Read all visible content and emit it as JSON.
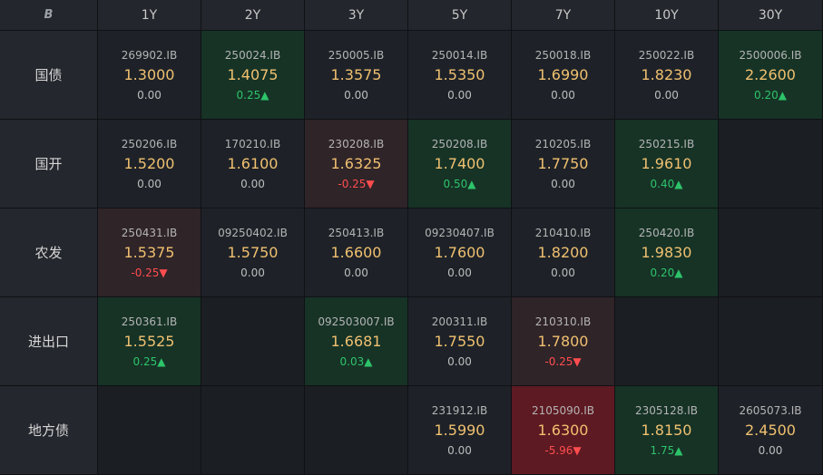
{
  "header": {
    "corner_icon": "B",
    "tenors": [
      "1Y",
      "2Y",
      "3Y",
      "5Y",
      "7Y",
      "10Y",
      "30Y"
    ]
  },
  "colors": {
    "background": "#191c21",
    "yield_text": "#f0c070",
    "up": "#2ec36a",
    "down": "#ff4d4f",
    "up_cell": "#163326",
    "down_cell": "#2f2428",
    "strong_down_cell": "#5e1a22"
  },
  "rows": [
    {
      "label": "国债",
      "cells": [
        {
          "code": "269902.IB",
          "yield": "1.3000",
          "change": "0.00",
          "dir": "flat"
        },
        {
          "code": "250024.IB",
          "yield": "1.4075",
          "change": "0.25▲",
          "dir": "up"
        },
        {
          "code": "250005.IB",
          "yield": "1.3575",
          "change": "0.00",
          "dir": "flat"
        },
        {
          "code": "250014.IB",
          "yield": "1.5350",
          "change": "0.00",
          "dir": "flat"
        },
        {
          "code": "250018.IB",
          "yield": "1.6990",
          "change": "0.00",
          "dir": "flat"
        },
        {
          "code": "250022.IB",
          "yield": "1.8230",
          "change": "0.00",
          "dir": "flat"
        },
        {
          "code": "2500006.IB",
          "yield": "2.2600",
          "change": "0.20▲",
          "dir": "up"
        }
      ]
    },
    {
      "label": "国开",
      "cells": [
        {
          "code": "250206.IB",
          "yield": "1.5200",
          "change": "0.00",
          "dir": "flat"
        },
        {
          "code": "170210.IB",
          "yield": "1.6100",
          "change": "0.00",
          "dir": "flat"
        },
        {
          "code": "230208.IB",
          "yield": "1.6325",
          "change": "-0.25▼",
          "dir": "down"
        },
        {
          "code": "250208.IB",
          "yield": "1.7400",
          "change": "0.50▲",
          "dir": "up"
        },
        {
          "code": "210205.IB",
          "yield": "1.7750",
          "change": "0.00",
          "dir": "flat"
        },
        {
          "code": "250215.IB",
          "yield": "1.9610",
          "change": "0.40▲",
          "dir": "up"
        },
        null
      ]
    },
    {
      "label": "农发",
      "cells": [
        {
          "code": "250431.IB",
          "yield": "1.5375",
          "change": "-0.25▼",
          "dir": "down"
        },
        {
          "code": "09250402.IB",
          "yield": "1.5750",
          "change": "0.00",
          "dir": "flat"
        },
        {
          "code": "250413.IB",
          "yield": "1.6600",
          "change": "0.00",
          "dir": "flat"
        },
        {
          "code": "09230407.IB",
          "yield": "1.7600",
          "change": "0.00",
          "dir": "flat"
        },
        {
          "code": "210410.IB",
          "yield": "1.8200",
          "change": "0.00",
          "dir": "flat"
        },
        {
          "code": "250420.IB",
          "yield": "1.9830",
          "change": "0.20▲",
          "dir": "up"
        },
        null
      ]
    },
    {
      "label": "进出口",
      "cells": [
        {
          "code": "250361.IB",
          "yield": "1.5525",
          "change": "0.25▲",
          "dir": "up"
        },
        null,
        {
          "code": "092503007.IB",
          "yield": "1.6681",
          "change": "0.03▲",
          "dir": "up"
        },
        {
          "code": "200311.IB",
          "yield": "1.7550",
          "change": "0.00",
          "dir": "flat"
        },
        {
          "code": "210310.IB",
          "yield": "1.7800",
          "change": "-0.25▼",
          "dir": "down"
        },
        null,
        null
      ]
    },
    {
      "label": "地方债",
      "cells": [
        null,
        null,
        null,
        {
          "code": "231912.IB",
          "yield": "1.5990",
          "change": "0.00",
          "dir": "flat"
        },
        {
          "code": "2105090.IB",
          "yield": "1.6300",
          "change": "-5.96▼",
          "dir": "strong-down"
        },
        {
          "code": "2305128.IB",
          "yield": "1.8150",
          "change": "1.75▲",
          "dir": "up"
        },
        {
          "code": "2605073.IB",
          "yield": "2.4500",
          "change": "0.00",
          "dir": "flat"
        }
      ]
    }
  ]
}
